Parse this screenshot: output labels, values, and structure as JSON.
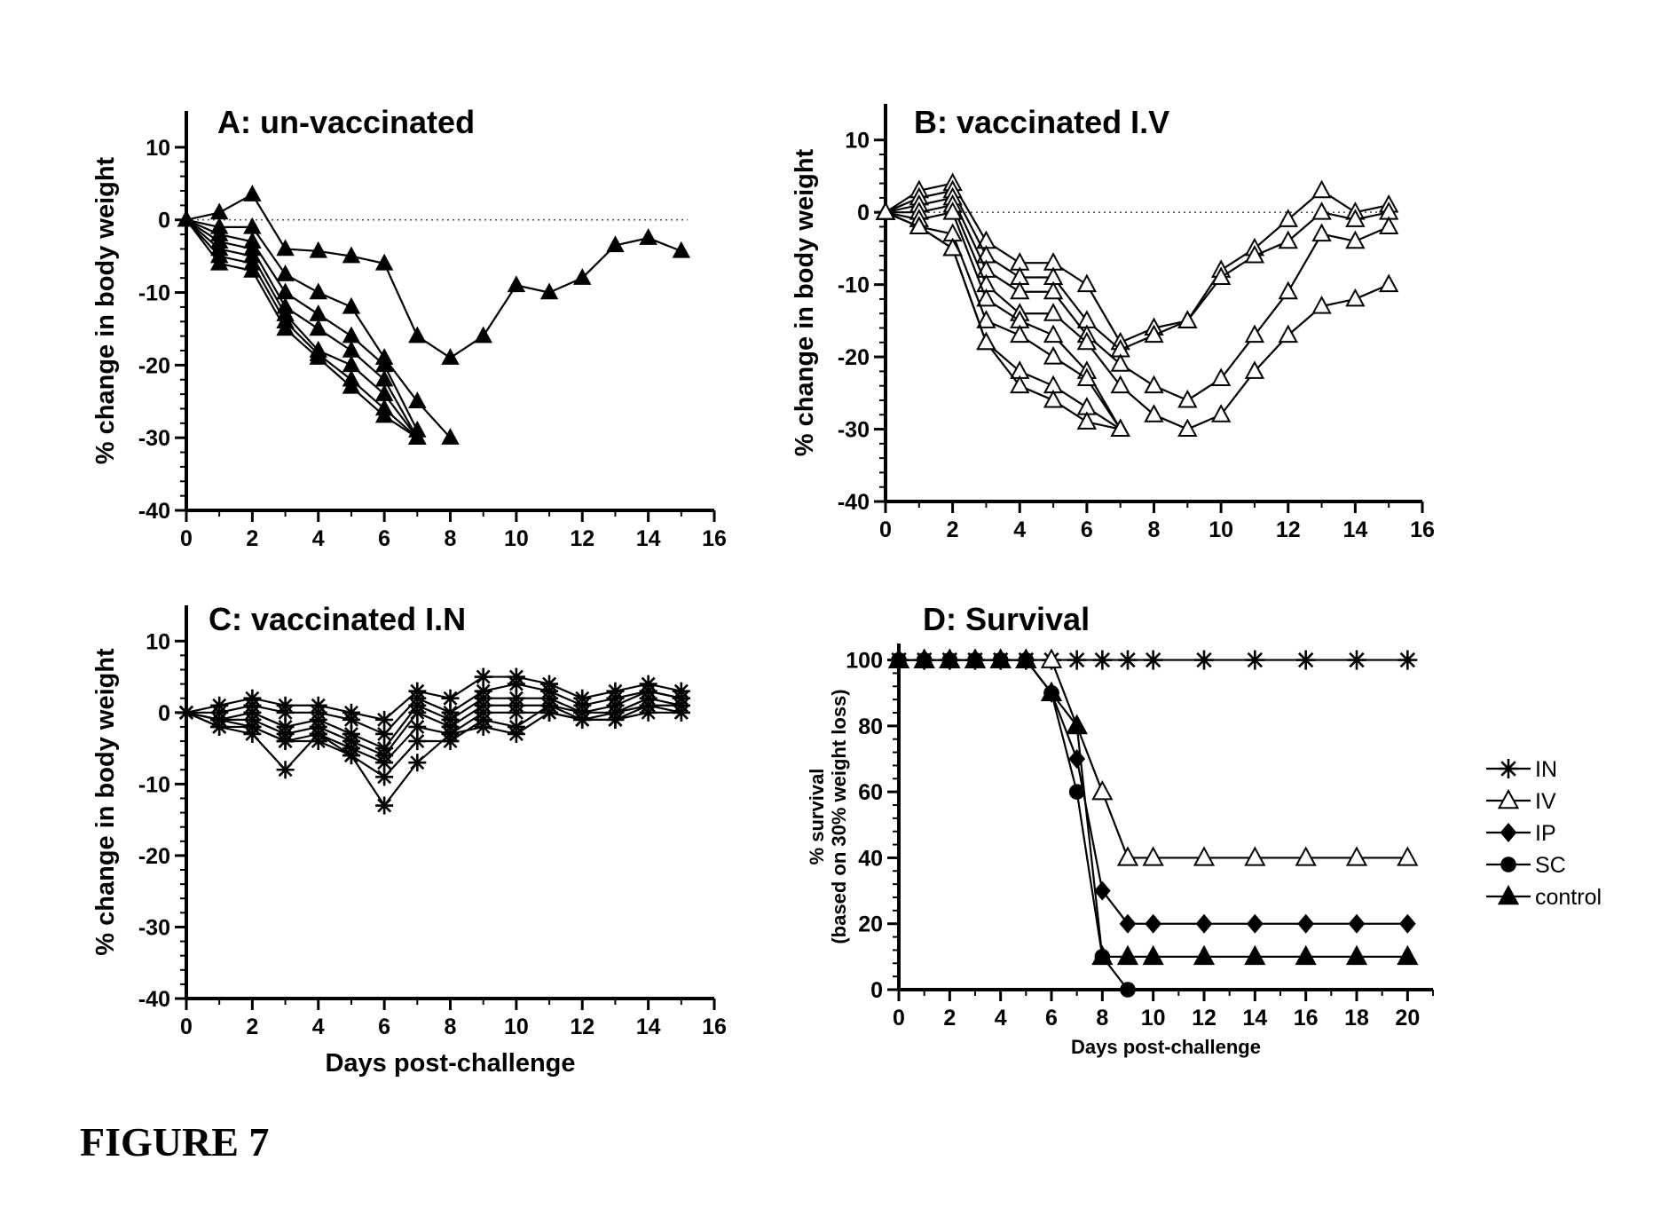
{
  "figure_label": "FIGURE 7",
  "chart_data": [
    {
      "id": "A",
      "type": "line",
      "title": "A: un-vaccinated",
      "xlabel": "",
      "ylabel": "% change in body weight",
      "xlim": [
        0,
        16
      ],
      "ylim": [
        -40,
        15
      ],
      "xticks": [
        0,
        2,
        4,
        6,
        8,
        10,
        12,
        14,
        16
      ],
      "yticks": [
        10,
        0,
        -10,
        -20,
        -30,
        -40
      ],
      "reference_line": 0,
      "marker": "filled-triangle",
      "series": [
        {
          "x": [
            0,
            1,
            2,
            3,
            4,
            5,
            6,
            7,
            8,
            9,
            10,
            11,
            12,
            13,
            14,
            15
          ],
          "values": [
            0,
            1,
            3.5,
            -4,
            -4.3,
            -5,
            -6,
            -16,
            -19,
            -16,
            -9,
            -10,
            -8,
            -3.5,
            -2.5,
            -4.3
          ]
        },
        {
          "x": [
            0,
            1,
            2,
            3,
            4,
            5,
            6,
            7,
            8
          ],
          "values": [
            0,
            -1,
            -1,
            -7.5,
            -10,
            -12,
            -19,
            -25,
            -30
          ]
        },
        {
          "x": [
            0,
            1,
            2,
            3,
            4,
            5,
            6,
            7
          ],
          "values": [
            0,
            -2,
            -3,
            -10,
            -13,
            -16,
            -20,
            -29
          ]
        },
        {
          "x": [
            0,
            1,
            2,
            3,
            4,
            5,
            6,
            7
          ],
          "values": [
            0,
            -3,
            -4,
            -12,
            -15,
            -18,
            -22,
            -30
          ]
        },
        {
          "x": [
            0,
            1,
            2,
            3,
            4,
            5,
            6,
            7
          ],
          "values": [
            0,
            -4,
            -5,
            -13,
            -18,
            -20,
            -24,
            -30
          ]
        },
        {
          "x": [
            0,
            1,
            2,
            3,
            4,
            5,
            6,
            7
          ],
          "values": [
            0,
            -5,
            -6,
            -14,
            -18.5,
            -22,
            -26,
            -30
          ]
        },
        {
          "x": [
            0,
            1,
            2,
            3,
            4,
            5,
            6,
            7
          ],
          "values": [
            0,
            -6,
            -7,
            -15,
            -19,
            -23,
            -27,
            -30
          ]
        }
      ]
    },
    {
      "id": "B",
      "type": "line",
      "title": "B: vaccinated I.V",
      "xlabel": "",
      "ylabel": "% change in body weight",
      "xlim": [
        0,
        16
      ],
      "ylim": [
        -40,
        15
      ],
      "xticks": [
        0,
        2,
        4,
        6,
        8,
        10,
        12,
        14,
        16
      ],
      "yticks": [
        10,
        0,
        -10,
        -20,
        -30,
        -40
      ],
      "reference_line": 0,
      "marker": "open-triangle",
      "series": [
        {
          "x": [
            0,
            1,
            2,
            3,
            4,
            5,
            6,
            7,
            8,
            9,
            10,
            11,
            12,
            13,
            14,
            15
          ],
          "values": [
            0,
            3,
            4,
            -4,
            -7,
            -7,
            -10,
            -18,
            -16,
            -15,
            -8,
            -5,
            -1,
            3,
            0,
            1
          ]
        },
        {
          "x": [
            0,
            1,
            2,
            3,
            4,
            5,
            6,
            7,
            8,
            9,
            10,
            11,
            12,
            13,
            14,
            15
          ],
          "values": [
            0,
            2,
            3,
            -6,
            -9,
            -9,
            -15,
            -19,
            -17,
            -15,
            -9,
            -6,
            -4,
            0,
            -1,
            0
          ]
        },
        {
          "x": [
            0,
            1,
            2,
            3,
            4,
            5,
            6,
            7,
            8,
            9,
            10,
            11,
            12,
            13,
            14,
            15
          ],
          "values": [
            0,
            1,
            2,
            -8,
            -11,
            -11,
            -17,
            -21,
            -24,
            -26,
            -23,
            -17,
            -11,
            -3,
            -4,
            -2
          ]
        },
        {
          "x": [
            0,
            1,
            2,
            3,
            4,
            5,
            6,
            7,
            8,
            9,
            10,
            11,
            12,
            13,
            14,
            15
          ],
          "values": [
            0,
            0,
            1,
            -10,
            -14,
            -14,
            -18,
            -24,
            -28,
            -30,
            -28,
            -22,
            -17,
            -13,
            -12,
            -10
          ]
        },
        {
          "x": [
            0,
            1,
            2,
            3,
            4,
            5,
            6,
            7
          ],
          "values": [
            0,
            -1,
            0,
            -12,
            -15,
            -17,
            -22,
            -30
          ]
        },
        {
          "x": [
            0,
            1,
            2,
            3,
            4,
            5,
            6,
            7
          ],
          "values": [
            0,
            -2,
            -3,
            -15,
            -17,
            -20,
            -23,
            -30
          ]
        },
        {
          "x": [
            0,
            1,
            2,
            3,
            4,
            5,
            6,
            7
          ],
          "values": [
            0,
            -2,
            -5,
            -18,
            -22,
            -24,
            -27,
            -30
          ]
        },
        {
          "x": [
            0,
            1,
            2,
            3,
            4,
            5,
            6,
            7
          ],
          "values": [
            0,
            -2,
            -5,
            -18,
            -24,
            -26,
            -29,
            -30
          ]
        }
      ]
    },
    {
      "id": "C",
      "type": "line",
      "title": "C: vaccinated I.N",
      "xlabel": "Days post-challenge",
      "ylabel": "% change in body weight",
      "xlim": [
        0,
        16
      ],
      "ylim": [
        -40,
        15
      ],
      "xticks": [
        0,
        2,
        4,
        6,
        8,
        10,
        12,
        14,
        16
      ],
      "yticks": [
        10,
        0,
        -10,
        -20,
        -30,
        -40
      ],
      "marker": "asterisk",
      "series": [
        {
          "x": [
            0,
            1,
            2,
            3,
            4,
            5,
            6,
            7,
            8,
            9,
            10,
            11,
            12,
            13,
            14,
            15
          ],
          "values": [
            0,
            1,
            2,
            1,
            1,
            0,
            -1,
            3,
            2,
            5,
            5,
            4,
            2,
            3,
            4,
            3
          ]
        },
        {
          "x": [
            0,
            1,
            2,
            3,
            4,
            5,
            6,
            7,
            8,
            9,
            10,
            11,
            12,
            13,
            14,
            15
          ],
          "values": [
            0,
            0,
            1,
            0,
            0,
            -1,
            -3,
            2,
            0,
            3,
            4,
            3,
            1,
            2,
            3,
            2
          ]
        },
        {
          "x": [
            0,
            1,
            2,
            3,
            4,
            5,
            6,
            7,
            8,
            9,
            10,
            11,
            12,
            13,
            14,
            15
          ],
          "values": [
            0,
            -1,
            0,
            -2,
            -1,
            -3,
            -5,
            1,
            -1,
            2,
            2,
            2,
            0,
            1,
            3,
            2
          ]
        },
        {
          "x": [
            0,
            1,
            2,
            3,
            4,
            5,
            6,
            7,
            8,
            9,
            10,
            11,
            12,
            13,
            14,
            15
          ],
          "values": [
            0,
            -1,
            -1,
            -3,
            -2,
            -4,
            -6,
            0,
            -2,
            1,
            1,
            1,
            0,
            0,
            2,
            1
          ]
        },
        {
          "x": [
            0,
            1,
            2,
            3,
            4,
            5,
            6,
            7,
            8,
            9,
            10,
            11,
            12,
            13,
            14,
            15
          ],
          "values": [
            0,
            -2,
            -2,
            -4,
            -3,
            -5,
            -7,
            -2,
            -3,
            0,
            0,
            0,
            -1,
            0,
            1,
            1
          ]
        },
        {
          "x": [
            0,
            1,
            2,
            3,
            4,
            5,
            6,
            7,
            8,
            9,
            10,
            11,
            12,
            13,
            14,
            15
          ],
          "values": [
            0,
            -2,
            -3,
            -8,
            -3,
            -6,
            -9,
            -4,
            -4,
            -1,
            -2,
            1,
            -1,
            -1,
            1,
            0
          ]
        },
        {
          "x": [
            0,
            1,
            2,
            3,
            4,
            5,
            6,
            7,
            8,
            9,
            10,
            11,
            12,
            13,
            14,
            15
          ],
          "values": [
            0,
            -1,
            -2,
            -4,
            -4,
            -6,
            -13,
            -7,
            -3,
            -2,
            -3,
            0,
            -1,
            -1,
            0,
            0
          ]
        }
      ]
    },
    {
      "id": "D",
      "type": "line",
      "title": "D: Survival",
      "xlabel": "Days post-challenge",
      "ylabel": "% survival",
      "ylabel2": "(based on 30% weight loss)",
      "xlim": [
        0,
        21
      ],
      "ylim": [
        0,
        105
      ],
      "xticks": [
        0,
        2,
        4,
        6,
        8,
        10,
        12,
        14,
        16,
        18,
        20
      ],
      "yticks": [
        100,
        80,
        60,
        40,
        20,
        0
      ],
      "legend_position": "right",
      "series": [
        {
          "name": "IN",
          "marker": "asterisk",
          "x": [
            0,
            1,
            2,
            3,
            4,
            5,
            6,
            7,
            8,
            9,
            10,
            12,
            14,
            16,
            18,
            20
          ],
          "values": [
            100,
            100,
            100,
            100,
            100,
            100,
            100,
            100,
            100,
            100,
            100,
            100,
            100,
            100,
            100,
            100
          ]
        },
        {
          "name": "IV",
          "marker": "open-triangle",
          "x": [
            0,
            1,
            2,
            3,
            4,
            5,
            6,
            7,
            8,
            9,
            10,
            12,
            14,
            16,
            18,
            20
          ],
          "values": [
            100,
            100,
            100,
            100,
            100,
            100,
            100,
            80,
            60,
            40,
            40,
            40,
            40,
            40,
            40,
            40
          ]
        },
        {
          "name": "IP",
          "marker": "filled-diamond",
          "x": [
            0,
            1,
            2,
            3,
            4,
            5,
            6,
            7,
            8,
            9,
            10,
            12,
            14,
            16,
            18,
            20
          ],
          "values": [
            100,
            100,
            100,
            100,
            100,
            100,
            90,
            70,
            30,
            20,
            20,
            20,
            20,
            20,
            20,
            20
          ]
        },
        {
          "name": "SC",
          "marker": "filled-circle",
          "x": [
            0,
            1,
            2,
            3,
            4,
            5,
            6,
            7,
            8,
            9
          ],
          "values": [
            100,
            100,
            100,
            100,
            100,
            100,
            90,
            60,
            10,
            0
          ]
        },
        {
          "name": "control",
          "marker": "filled-triangle",
          "x": [
            0,
            1,
            2,
            3,
            4,
            5,
            6,
            7,
            8,
            9,
            10,
            12,
            14,
            16,
            18,
            20
          ],
          "values": [
            100,
            100,
            100,
            100,
            100,
            100,
            90,
            80,
            10,
            10,
            10,
            10,
            10,
            10,
            10,
            10
          ]
        }
      ]
    }
  ]
}
